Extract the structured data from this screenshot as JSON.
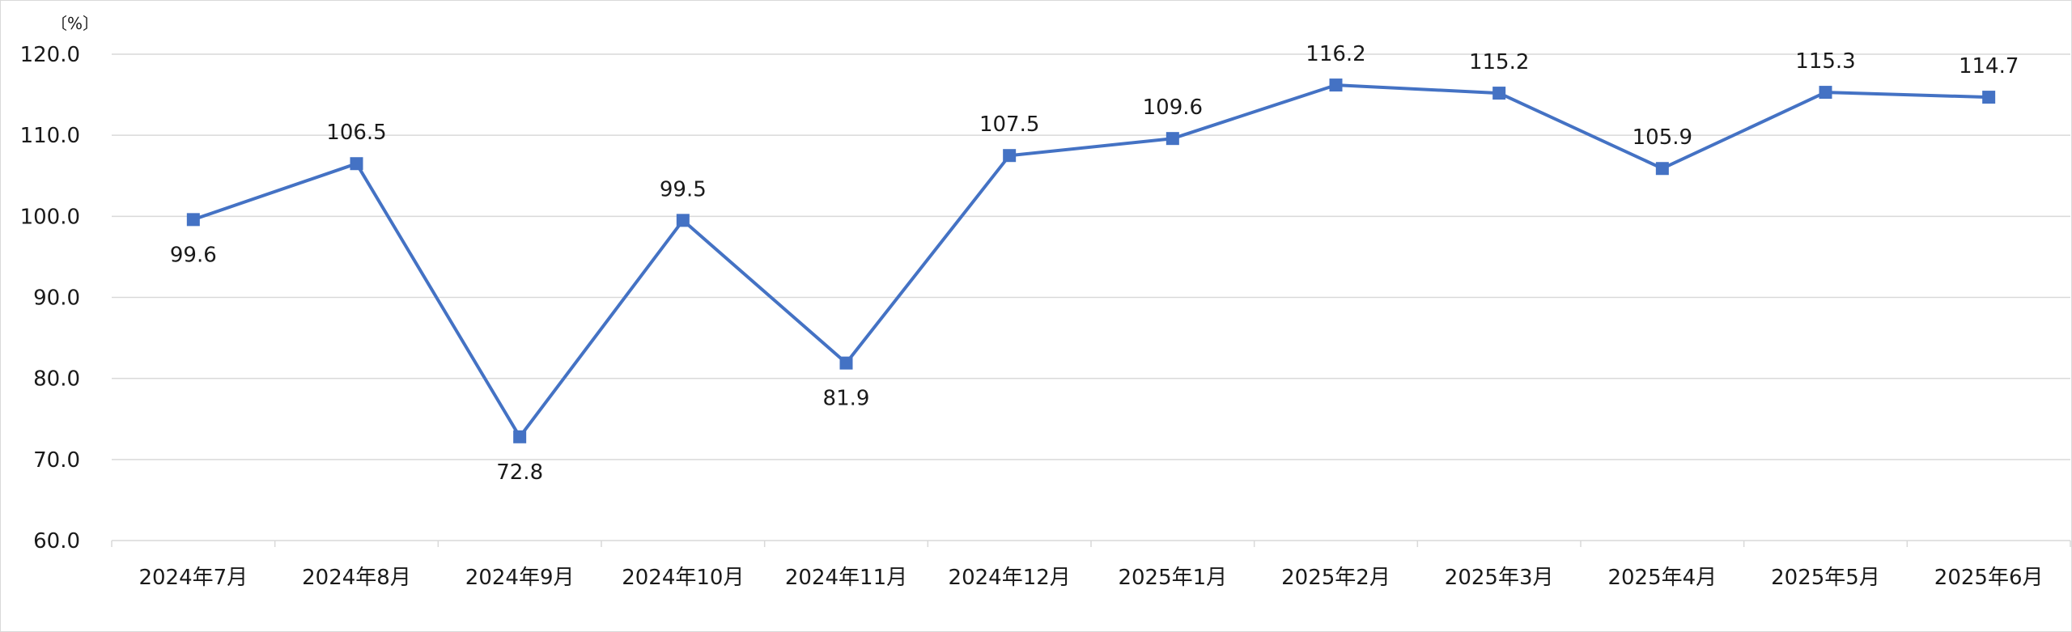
{
  "chart_data": {
    "type": "line",
    "title": "",
    "xlabel": "",
    "ylabel": "",
    "unit_label": "〔%〕",
    "categories": [
      "2024年7月",
      "2024年8月",
      "2024年9月",
      "2024年10月",
      "2024年11月",
      "2024年12月",
      "2025年1月",
      "2025年2月",
      "2025年3月",
      "2025年4月",
      "2025年5月",
      "2025年6月"
    ],
    "series": [
      {
        "values": [
          99.6,
          106.5,
          72.8,
          99.5,
          81.9,
          107.5,
          109.6,
          116.2,
          115.2,
          105.9,
          115.3,
          114.7
        ],
        "data_labels": [
          "99.6",
          "106.5",
          "72.8",
          "99.5",
          "81.9",
          "107.5",
          "109.6",
          "116.2",
          "115.2",
          "105.9",
          "115.3",
          "114.7"
        ],
        "label_position": [
          "below",
          "above",
          "below",
          "above",
          "below",
          "above",
          "above",
          "above",
          "above",
          "above",
          "above",
          "above"
        ],
        "color": "#4472c4",
        "marker": "square"
      }
    ],
    "ylim": [
      60,
      120
    ],
    "yticks": [
      "60.0",
      "70.0",
      "80.0",
      "90.0",
      "100.0",
      "110.0",
      "120.0"
    ],
    "grid": true,
    "legend": "none",
    "gridline_color": "#d9d9d9"
  }
}
